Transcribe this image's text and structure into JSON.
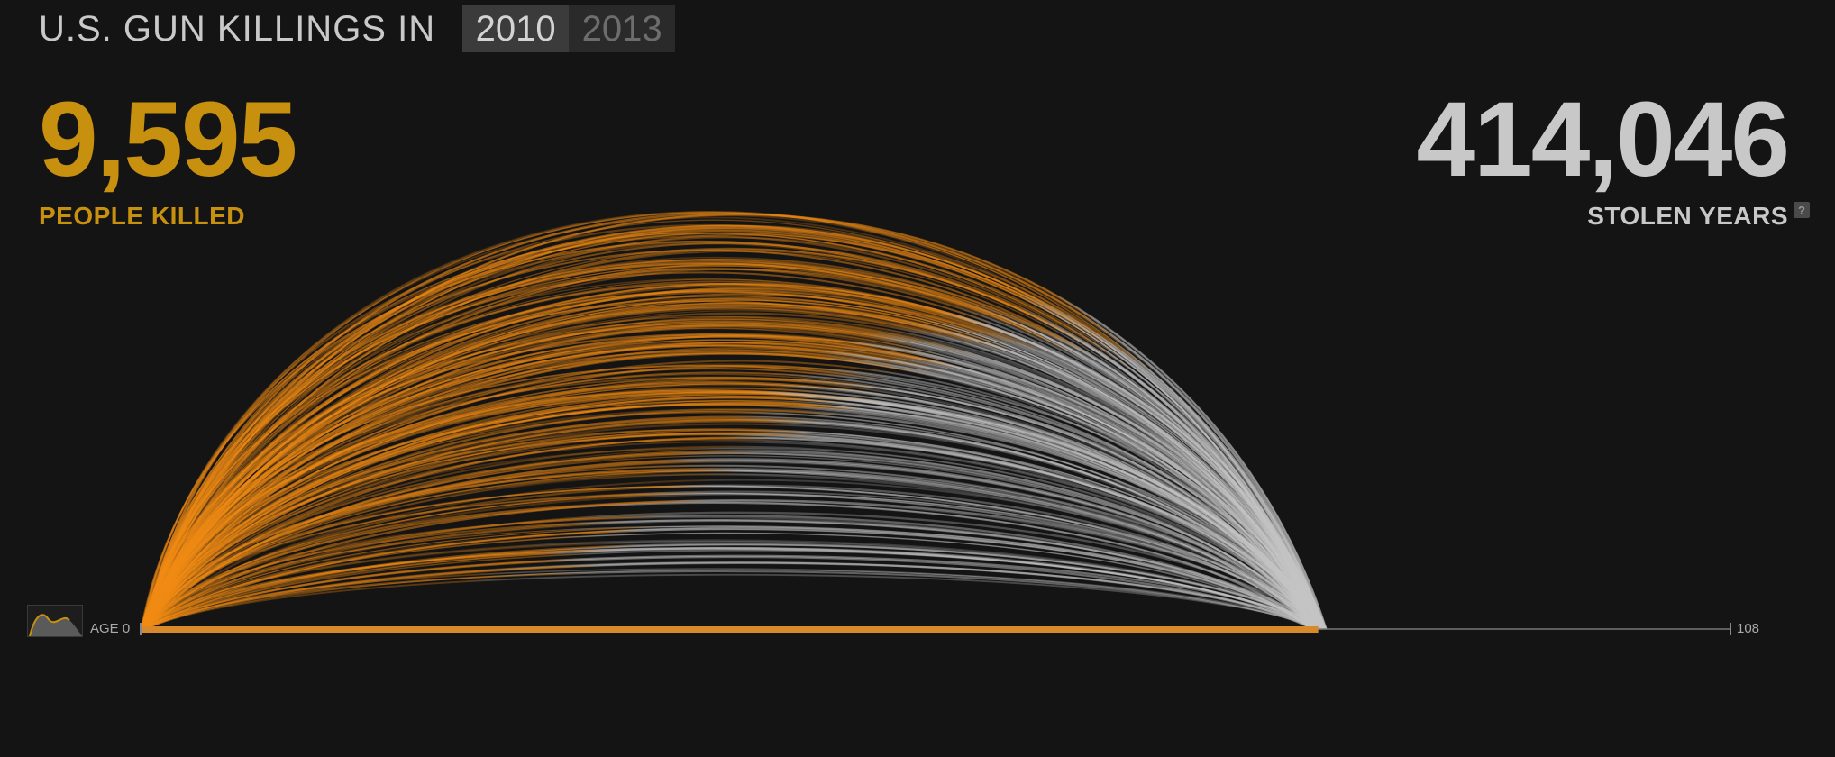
{
  "header": {
    "title": "U.S. GUN KILLINGS IN",
    "years": [
      {
        "label": "2010",
        "active": true
      },
      {
        "label": "2013",
        "active": false
      }
    ]
  },
  "stats": {
    "killed_value": "9,595",
    "killed_label": "PEOPLE KILLED",
    "stolen_value": "414,046",
    "stolen_label": "STOLEN YEARS",
    "help_label": "?"
  },
  "colors": {
    "killed": "#c8900f",
    "arc_orange": "#f08a12",
    "arc_gray": "#c4c4c4",
    "background": "#141414"
  },
  "chart_data": {
    "type": "arc",
    "x_axis": {
      "min": 0,
      "max": 108,
      "start_label": "AGE 0",
      "end_label": "108"
    },
    "description_encoding": "each arc starts at age at death (orange) and ends at projected life expectancy; gray portion represents stolen years",
    "typical_projected_age": 80
  }
}
